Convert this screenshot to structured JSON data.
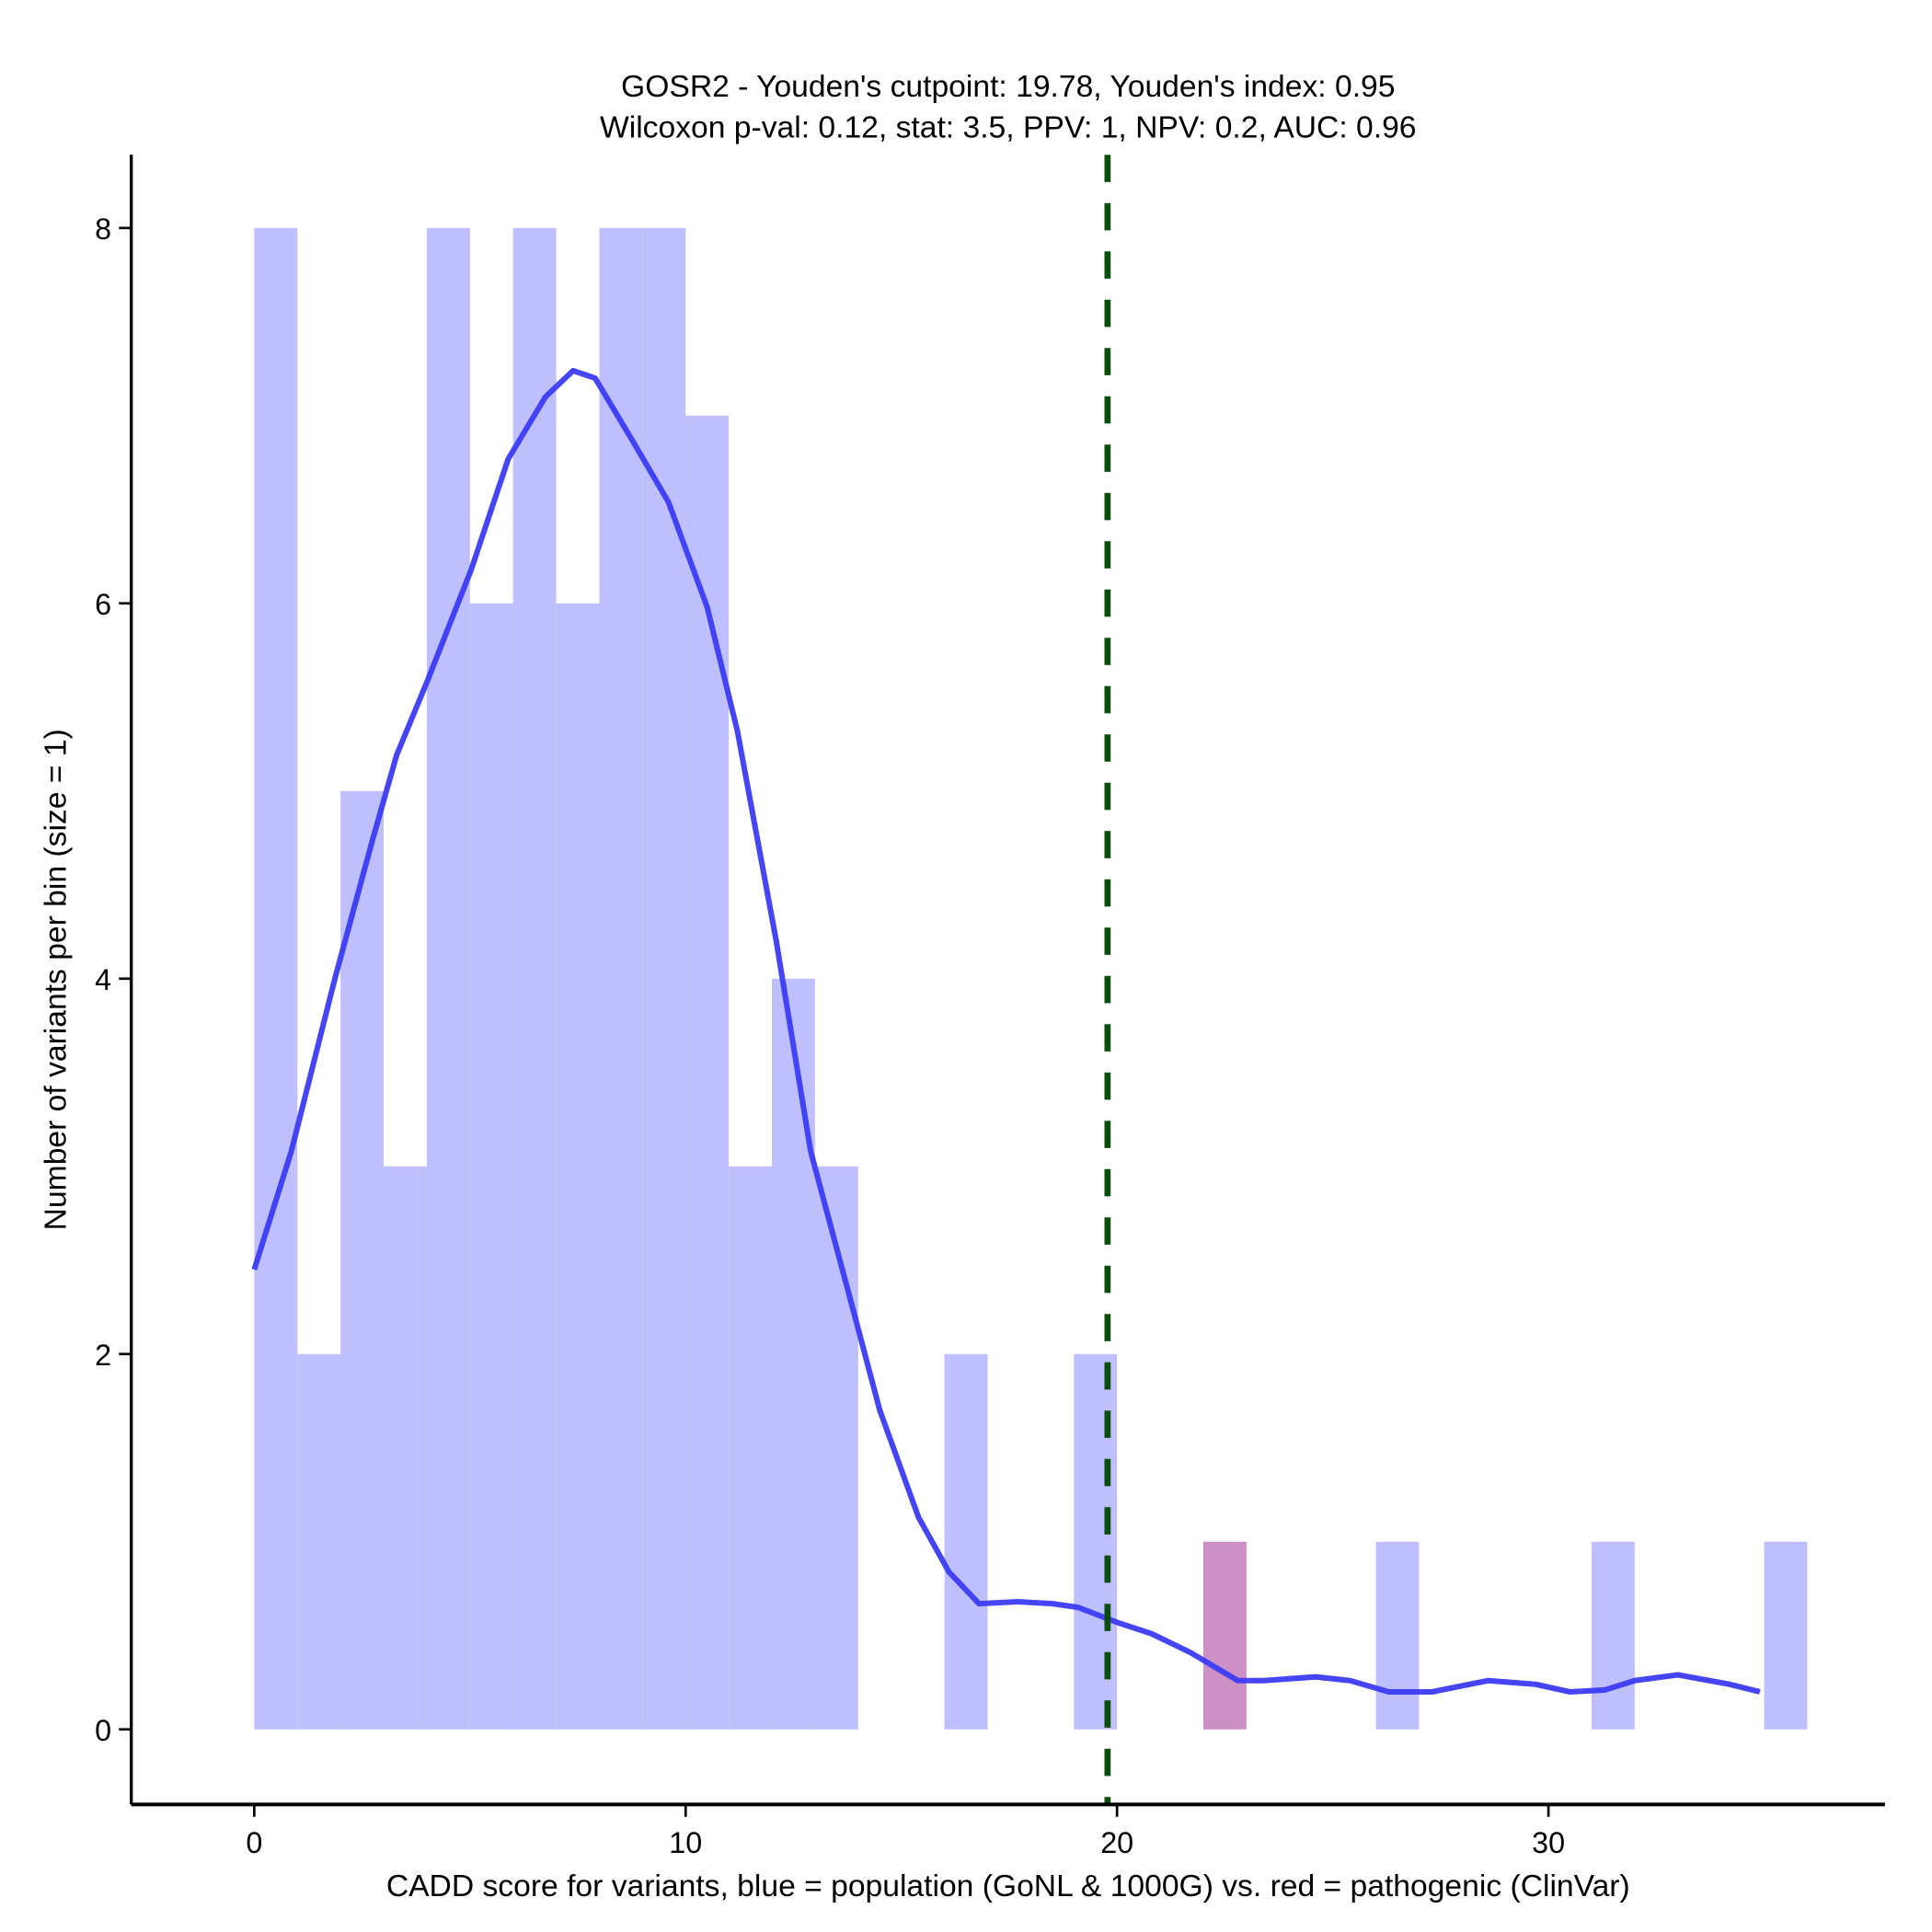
{
  "chart_data": {
    "type": "bar",
    "title_line1": "GOSR2 - Youden's cutpoint: 19.78, Youden's index: 0.95",
    "title_line2": "Wilcoxon p-val: 0.12, stat: 3.5, PPV: 1, NPV: 0.2, AUC: 0.96",
    "xlabel": "CADD score for variants, blue = population (GoNL & 1000G) vs. red = pathogenic (ClinVar)",
    "ylabel": "Number of variants per bin (size = 1)",
    "xlim": [
      -2.85,
      37.8
    ],
    "ylim": [
      -0.4,
      8.39
    ],
    "xticks": [
      "0",
      "10",
      "20",
      "30"
    ],
    "yticks": [
      "0",
      "2",
      "4",
      "6",
      "8"
    ],
    "bin_width": 1,
    "cutpoint": 19.78,
    "colors": {
      "population": "#bfbffe",
      "pathogenic": "#cc90c4",
      "density": "#3b3bf5",
      "cutpoint": "#0b4d0b"
    },
    "series": [
      {
        "name": "population",
        "bins": [
          [
            0,
            8
          ],
          [
            1,
            2
          ],
          [
            2,
            5
          ],
          [
            3,
            3
          ],
          [
            4,
            8
          ],
          [
            5,
            6
          ],
          [
            6,
            8
          ],
          [
            7,
            6
          ],
          [
            8,
            8
          ],
          [
            9,
            8
          ],
          [
            10,
            7
          ],
          [
            11,
            3
          ],
          [
            12,
            4
          ],
          [
            13,
            3
          ],
          [
            16,
            2
          ],
          [
            19,
            2
          ],
          [
            26,
            1
          ],
          [
            31,
            1
          ],
          [
            35,
            1
          ]
        ]
      },
      {
        "name": "pathogenic",
        "bins": [
          [
            22,
            1
          ]
        ]
      }
    ],
    "density": [
      [
        0,
        2.45
      ],
      [
        0.86,
        3.08
      ],
      [
        1.87,
        4.0
      ],
      [
        2.73,
        4.73
      ],
      [
        3.3,
        5.19
      ],
      [
        4.02,
        5.59
      ],
      [
        5.03,
        6.18
      ],
      [
        5.89,
        6.77
      ],
      [
        6.75,
        7.1
      ],
      [
        7.39,
        7.24
      ],
      [
        7.9,
        7.2
      ],
      [
        8.76,
        6.87
      ],
      [
        9.6,
        6.54
      ],
      [
        10.5,
        5.98
      ],
      [
        11.2,
        5.32
      ],
      [
        12.1,
        4.2
      ],
      [
        12.9,
        3.08
      ],
      [
        13.9,
        2.22
      ],
      [
        14.5,
        1.7
      ],
      [
        15.4,
        1.13
      ],
      [
        16.1,
        0.84
      ],
      [
        16.8,
        0.67
      ],
      [
        17.7,
        0.68
      ],
      [
        18.5,
        0.67
      ],
      [
        19.1,
        0.65
      ],
      [
        20,
        0.57
      ],
      [
        20.8,
        0.51
      ],
      [
        21.7,
        0.41
      ],
      [
        22.8,
        0.26
      ],
      [
        23.4,
        0.26
      ],
      [
        24.6,
        0.28
      ],
      [
        25.4,
        0.26
      ],
      [
        26.3,
        0.2
      ],
      [
        27.3,
        0.2
      ],
      [
        28.6,
        0.26
      ],
      [
        29.7,
        0.24
      ],
      [
        30.5,
        0.2
      ],
      [
        31.3,
        0.21
      ],
      [
        32.0,
        0.26
      ],
      [
        33.0,
        0.29
      ],
      [
        34.2,
        0.24
      ],
      [
        34.9,
        0.2
      ]
    ]
  }
}
